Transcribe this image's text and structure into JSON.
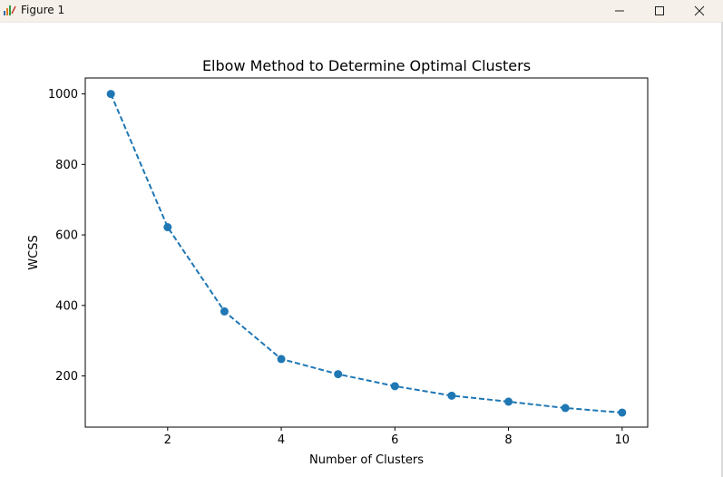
{
  "window": {
    "title": "Figure 1",
    "icon": "matplotlib-figure-icon"
  },
  "controls": {
    "minimize": "minimize-icon",
    "maximize": "maximize-icon",
    "close": "close-icon"
  },
  "chart_data": {
    "type": "line",
    "title": "Elbow Method to Determine Optimal Clusters",
    "xlabel": "Number of Clusters",
    "ylabel": "WCSS",
    "x": [
      1,
      2,
      3,
      4,
      5,
      6,
      7,
      8,
      9,
      10
    ],
    "series": [
      {
        "values": [
          1000,
          622,
          383,
          248,
          205,
          171,
          144,
          127,
          109,
          96
        ],
        "color": "#1f77b4",
        "linestyle": "dashed",
        "marker": "circle"
      }
    ],
    "xticks": [
      2,
      4,
      6,
      8,
      10
    ],
    "yticks": [
      200,
      400,
      600,
      800,
      1000
    ],
    "xlim": [
      0.55,
      10.45
    ],
    "ylim": [
      54.8,
      1045.2
    ],
    "grid": false,
    "legend": "none"
  }
}
